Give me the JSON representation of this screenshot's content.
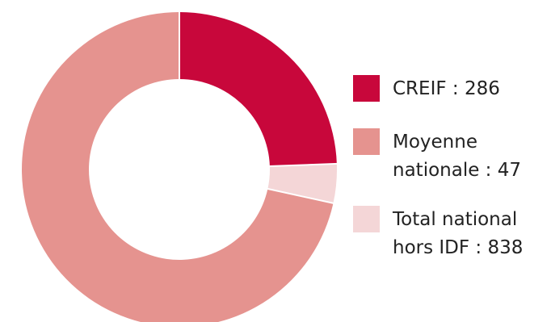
{
  "chart_data": {
    "type": "pie",
    "donut": true,
    "slices": [
      {
        "label": "CREIF : 286",
        "value": 286,
        "color": "#c8073b"
      },
      {
        "label": "Moyenne nationale : 47",
        "value": 47,
        "color": "#f4d6d7"
      },
      {
        "label": "Total national hors IDF : 838",
        "value": 838,
        "color": "#e5938f"
      }
    ],
    "legend": [
      {
        "label": "CREIF : 286",
        "color": "#c8073b"
      },
      {
        "label": "Moyenne nationale : 47",
        "color": "#e5938f"
      },
      {
        "label": "Total national hors IDF : 838",
        "color": "#f4d6d7"
      }
    ],
    "legend_position": "right"
  }
}
